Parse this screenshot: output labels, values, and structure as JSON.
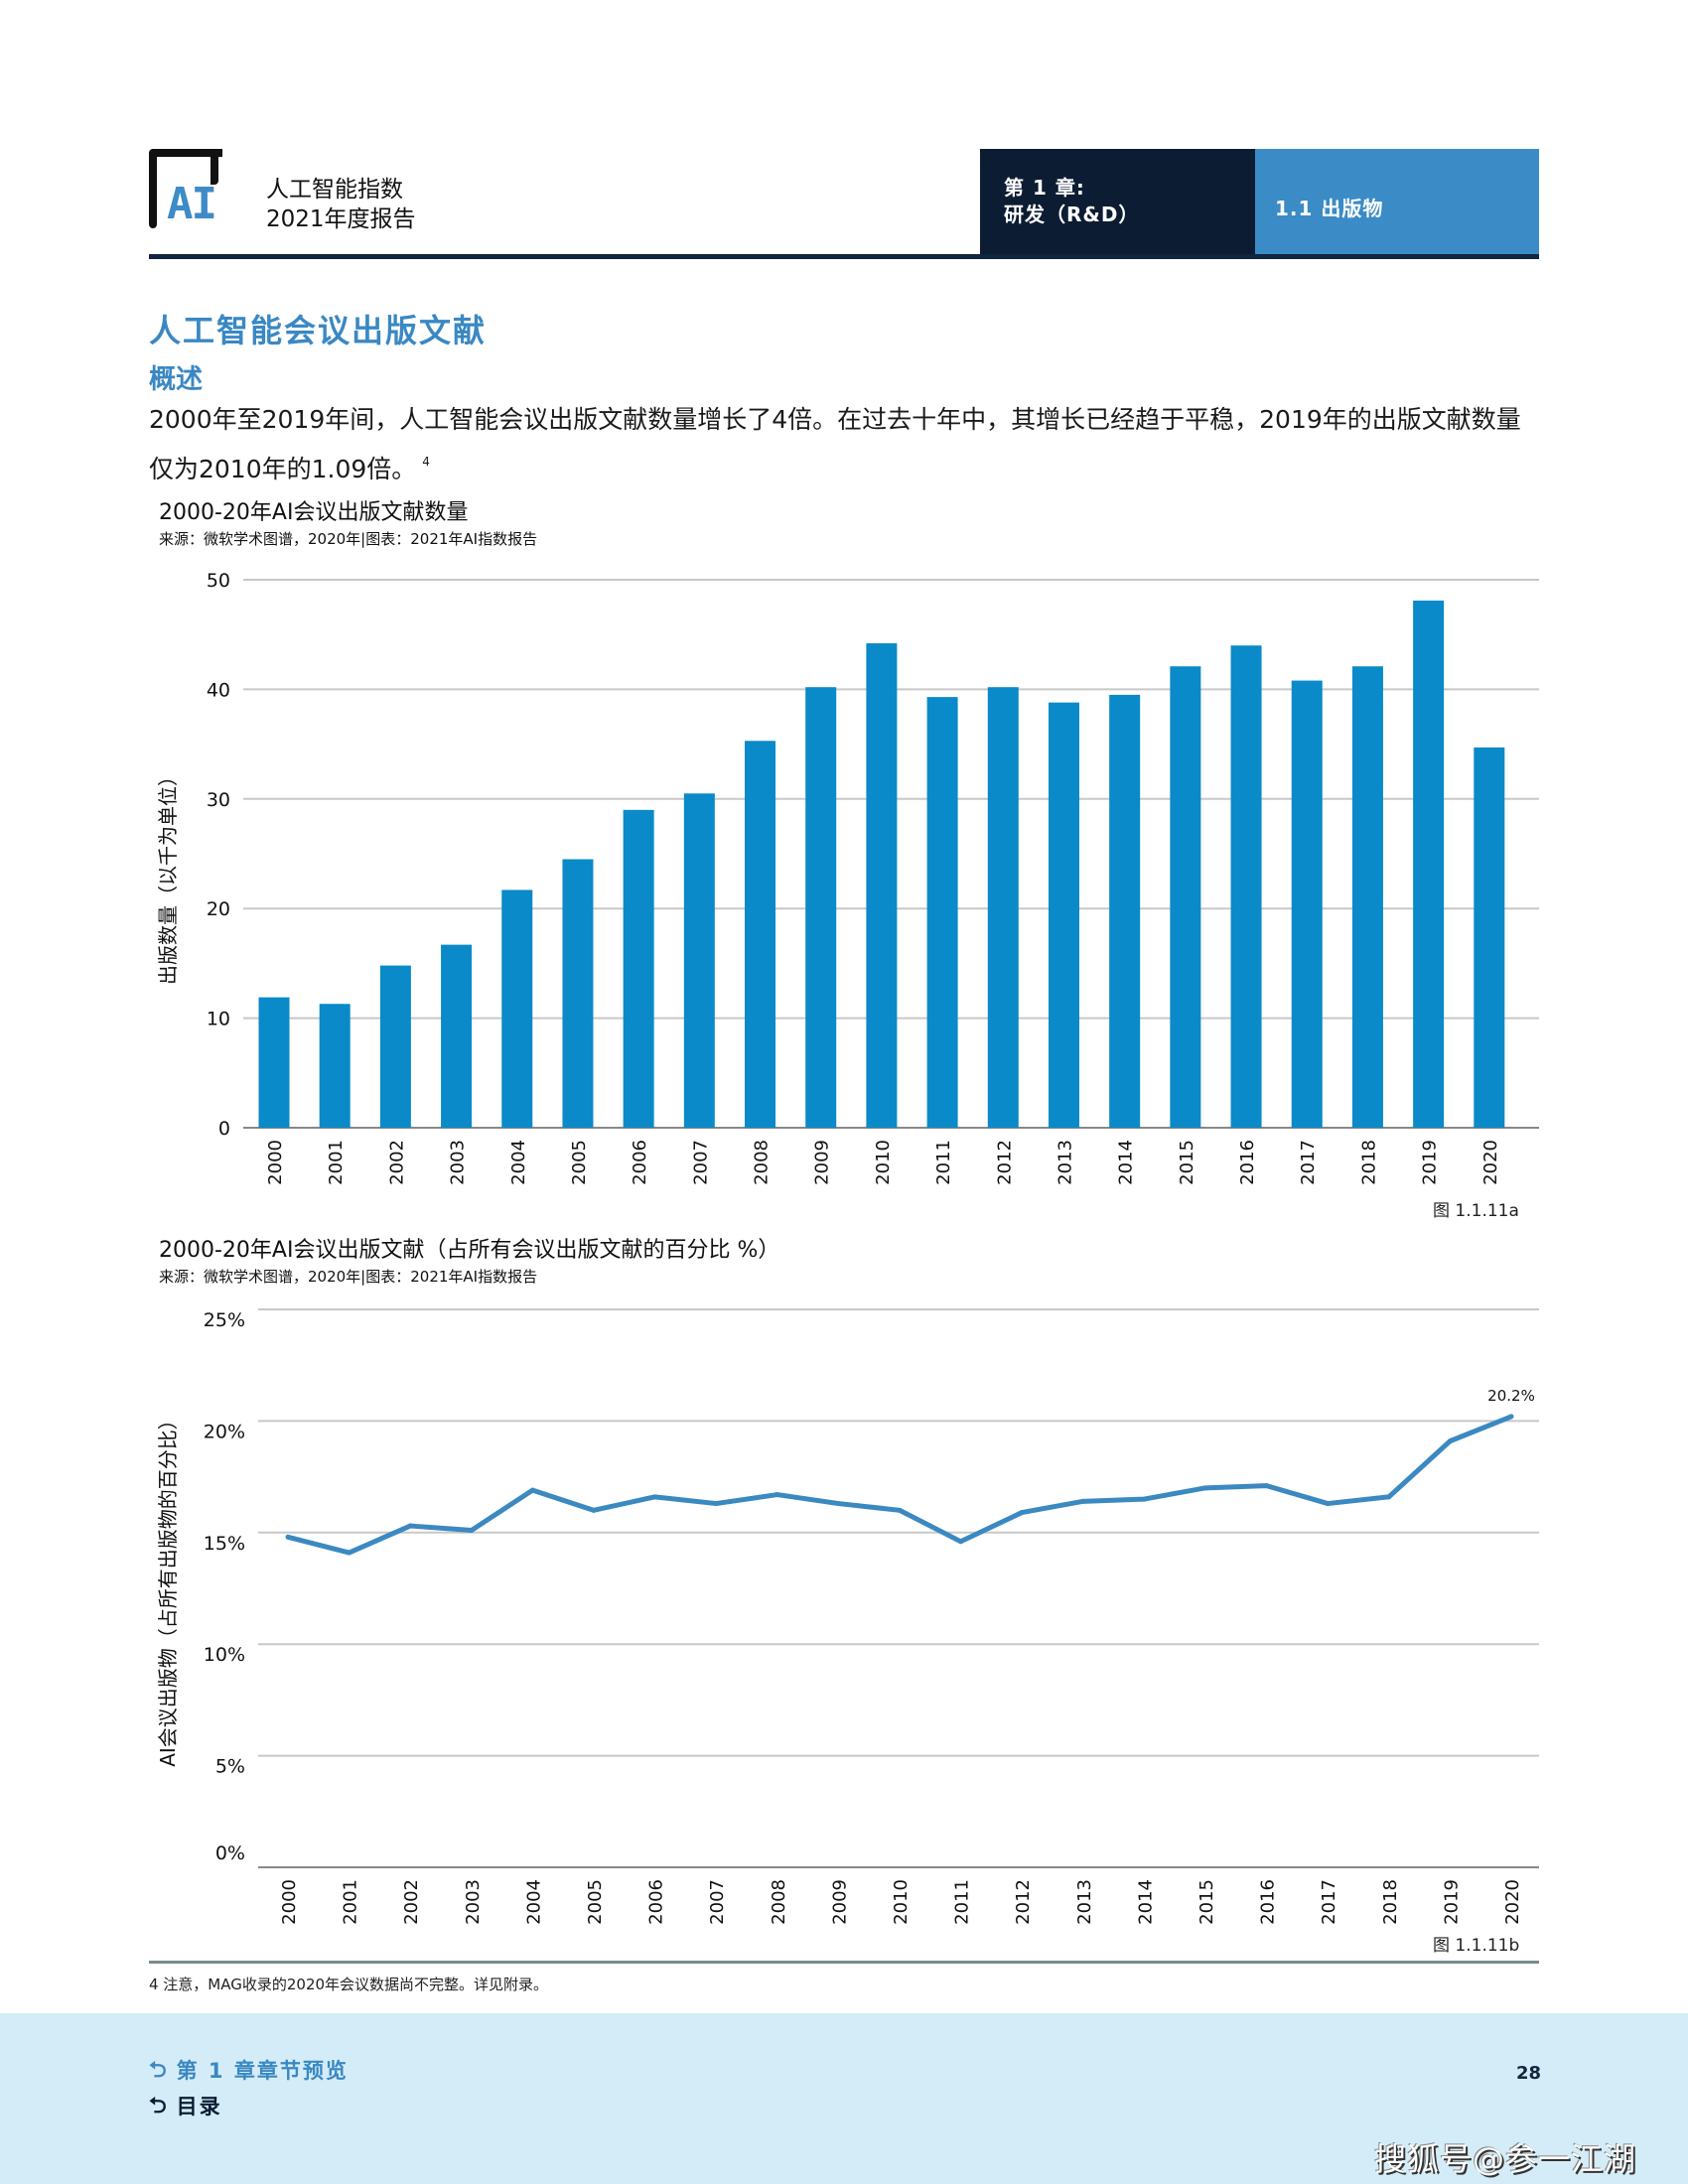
{
  "header": {
    "logo_text": "AI",
    "report_title_line1": "人工智能指数",
    "report_title_line2": "2021年度报告",
    "chapter_line1": "第 1 章:",
    "chapter_line2": "研发（R&D）",
    "section": "1.1 出版物"
  },
  "content": {
    "main_title": "人工智能会议出版文献",
    "sub_title": "概述",
    "intro": "2000年至2019年间，人工智能会议出版文献数量增长了4倍。在过去十年中，其增长已经趋于平稳，2019年的出版文献数量仅为2010年的1.09倍。",
    "intro_footnote_ref": "4"
  },
  "chart_data": [
    {
      "type": "bar",
      "title": "2000-20年AI会议出版文献数量",
      "source": "来源：微软学术图谱，2020年|图表：2021年AI指数报告",
      "xlabel": "",
      "ylabel": "出版数量（以千为单位）",
      "ylim": [
        0,
        50
      ],
      "yticks": [
        0,
        10,
        20,
        30,
        40,
        50
      ],
      "grid": true,
      "categories": [
        "2000",
        "2001",
        "2002",
        "2003",
        "2004",
        "2005",
        "2006",
        "2007",
        "2008",
        "2009",
        "2010",
        "2011",
        "2012",
        "2013",
        "2014",
        "2015",
        "2016",
        "2017",
        "2018",
        "2019",
        "2020"
      ],
      "values": [
        11.9,
        11.3,
        14.8,
        16.7,
        21.7,
        24.5,
        29.0,
        30.5,
        35.3,
        40.2,
        44.2,
        39.3,
        40.2,
        38.8,
        39.5,
        42.1,
        44.0,
        40.8,
        42.1,
        48.1,
        34.7
      ],
      "color": "#0a8ac8",
      "figure_label": "图 1.1.11a"
    },
    {
      "type": "line",
      "title": "2000-20年AI会议出版文献（占所有会议出版文献的百分比 %）",
      "source": "来源：微软学术图谱，2020年|图表：2021年AI指数报告",
      "xlabel": "",
      "ylabel": "AI会议出版物（占所有出版物的百分比）",
      "ylim": [
        0,
        25
      ],
      "yticks": [
        0,
        5,
        10,
        15,
        20,
        25
      ],
      "ytick_labels": [
        "0%",
        "5%",
        "10%",
        "15%",
        "20%",
        "25%"
      ],
      "grid": true,
      "categories": [
        "2000",
        "2001",
        "2002",
        "2003",
        "2004",
        "2005",
        "2006",
        "2007",
        "2008",
        "2009",
        "2010",
        "2011",
        "2012",
        "2013",
        "2014",
        "2015",
        "2016",
        "2017",
        "2018",
        "2019",
        "2020"
      ],
      "series": [
        {
          "name": "AI会议出版物占比",
          "values": [
            14.8,
            14.1,
            15.3,
            15.1,
            16.9,
            16.0,
            16.6,
            16.3,
            16.7,
            16.3,
            16.0,
            14.6,
            15.9,
            16.4,
            16.5,
            17.0,
            17.1,
            16.3,
            16.6,
            19.1,
            20.2
          ],
          "color": "#3b89c1"
        }
      ],
      "annotations": [
        {
          "category": "2020",
          "text": "20.2%"
        }
      ],
      "figure_label": "图 1.1.11b"
    }
  ],
  "footnote": "4 注意，MAG收录的2020年会议数据尚不完整。详见附录。",
  "footer": {
    "chapter_link": "第 1 章章节预览",
    "toc_link": "目录",
    "page_number": "28",
    "watermark": "搜狐号@参一江湖"
  }
}
